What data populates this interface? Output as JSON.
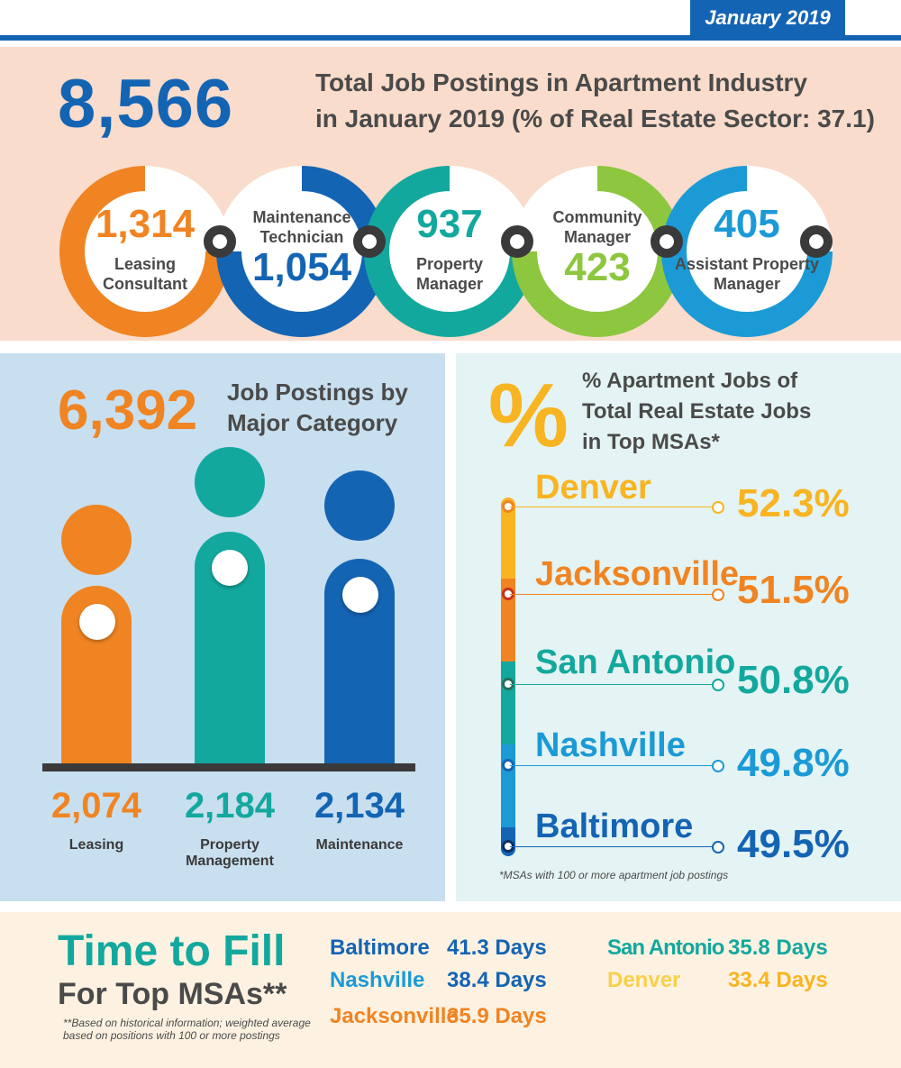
{
  "header": {
    "date": "January 2019"
  },
  "top": {
    "total": "8,566",
    "title_line1": "Total Job Postings in Apartment Industry",
    "title_line2": "in January 2019 (% of Real Estate Sector: 37.1)",
    "rings": [
      {
        "value": "1,314",
        "label1": "Leasing",
        "label2": "Consultant",
        "color": "#f08422"
      },
      {
        "value": "1,054",
        "label1": "Maintenance",
        "label2": "Technician",
        "color": "#1464b4"
      },
      {
        "value": "937",
        "label1": "Property",
        "label2": "Manager",
        "color": "#13a89e"
      },
      {
        "value": "423",
        "label1": "Community",
        "label2": "Manager",
        "color": "#8dc63f"
      },
      {
        "value": "405",
        "label1": "Assistant Property",
        "label2": "Manager",
        "color": "#1b9ad6"
      }
    ]
  },
  "major": {
    "total": "6,392",
    "title_line1": "Job Postings by",
    "title_line2": "Major Category",
    "categories": [
      {
        "value": "2,074",
        "label1": "Leasing",
        "label2": "",
        "color": "#f08422"
      },
      {
        "value": "2,184",
        "label1": "Property",
        "label2": "Management",
        "color": "#13a89e"
      },
      {
        "value": "2,134",
        "label1": "Maintenance",
        "label2": "",
        "color": "#1464b4"
      }
    ]
  },
  "msa": {
    "symbol": "%",
    "title_line1": "% Apartment Jobs of",
    "title_line2": "Total Real Estate Jobs",
    "title_line3": "in Top MSAs*",
    "items": [
      {
        "city": "Denver",
        "pct": "52.3%",
        "color": "#f8b421"
      },
      {
        "city": "Jacksonville",
        "pct": "51.5%",
        "color": "#f08422"
      },
      {
        "city": "San Antonio",
        "pct": "50.8%",
        "color": "#13a89e"
      },
      {
        "city": "Nashville",
        "pct": "49.8%",
        "color": "#1b9ad6"
      },
      {
        "city": "Baltimore",
        "pct": "49.5%",
        "color": "#1464b4"
      }
    ],
    "footnote": "*MSAs with 100 or more apartment job postings"
  },
  "time_to_fill": {
    "title": "Time to Fill",
    "subtitle": "For Top MSAs**",
    "note": "**Based on historical information; weighted average based on positions with 100 or more postings",
    "items": [
      {
        "city": "Baltimore",
        "days": "41.3 Days",
        "color": "#1464b4"
      },
      {
        "city": "Nashville",
        "days": "38.4 Days",
        "color": "#1b9ad6"
      },
      {
        "city": "Jacksonville",
        "days": "35.9 Days",
        "color": "#f08422"
      },
      {
        "city": "San Antonio",
        "days": "35.8 Days",
        "color": "#13a89e"
      },
      {
        "city": "Denver",
        "days": "33.4 Days",
        "color": "#f8b421"
      }
    ]
  }
}
